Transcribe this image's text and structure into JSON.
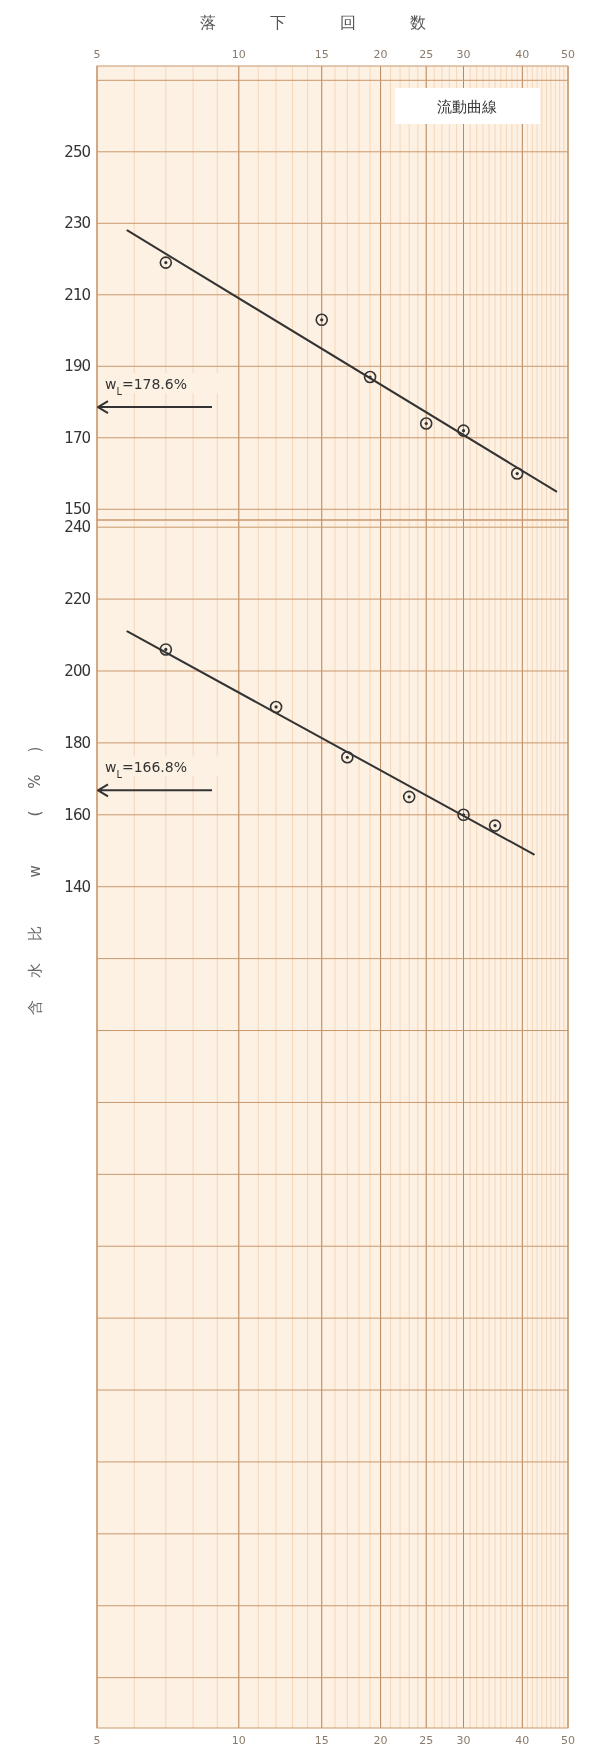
{
  "chart_data": [
    {
      "type": "scatter",
      "xlabel": "落下回数",
      "log": "x",
      "xlim": [
        5,
        50
      ],
      "xticks": [
        5,
        10,
        15,
        20,
        25,
        30,
        40,
        50
      ],
      "ylim": [
        147,
        274
      ],
      "yticks": [
        150,
        170,
        190,
        210,
        230,
        250
      ],
      "grid": true,
      "series": [
        {
          "type": "scatter",
          "marker": "circle",
          "color": "#333333",
          "x": [
            7,
            15,
            19,
            25,
            30,
            39
          ],
          "values": [
            219,
            203,
            187,
            174,
            172,
            160
          ]
        },
        {
          "type": "line",
          "color": "#333333",
          "x": [
            5.8,
            47.2
          ],
          "values": [
            228,
            155
          ]
        }
      ],
      "ref_lines": [
        {
          "axis": "y",
          "value": 178.6,
          "label": "w$_{L}$=178.6%"
        }
      ],
      "annotations": [
        "流動曲線"
      ]
    },
    {
      "type": "scatter",
      "ylabel": "含水比 w (%)",
      "log": "x",
      "xlim": [
        5,
        50
      ],
      "xticks": [
        5,
        10,
        15,
        20,
        25,
        30,
        40,
        50
      ],
      "ylim": [
        -94,
        242
      ],
      "yticks": [
        140,
        160,
        180,
        200,
        220,
        240
      ],
      "grid": true,
      "series": [
        {
          "type": "scatter",
          "marker": "circle",
          "color": "#333333",
          "x": [
            7,
            12,
            17,
            23,
            30,
            35
          ],
          "values": [
            206,
            190,
            176,
            165,
            160,
            157
          ]
        },
        {
          "type": "line",
          "color": "#333333",
          "x": [
            5.8,
            42.3
          ],
          "values": [
            211,
            149
          ]
        }
      ],
      "ref_lines": [
        {
          "axis": "y",
          "value": 166.8,
          "label": "w$_{L}$=166.8%"
        }
      ]
    }
  ]
}
